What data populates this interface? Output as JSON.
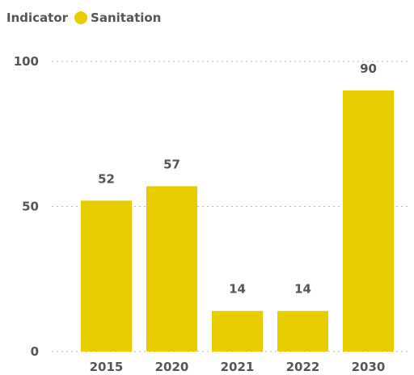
{
  "chart_data": {
    "type": "bar",
    "legend_title": "Indicator",
    "categories": [
      "2015",
      "2020",
      "2021",
      "2022",
      "2030"
    ],
    "series": [
      {
        "name": "Sanitation",
        "values": [
          52,
          57,
          14,
          14,
          90
        ],
        "color": "#E8CE00"
      }
    ],
    "ylim": [
      0,
      100
    ],
    "yticks": [
      0,
      50,
      100
    ],
    "grid": true,
    "gridline_color": "#bbbbbb",
    "legend_position": "top-left",
    "data_labels": true
  }
}
